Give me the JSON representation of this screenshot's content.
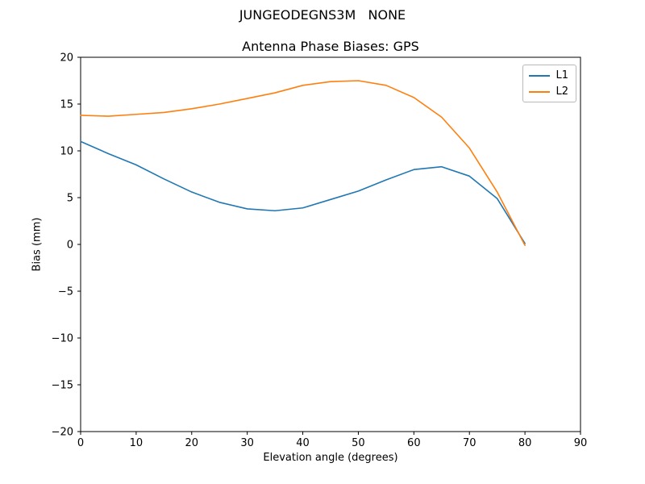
{
  "figure": {
    "suptitle": "JUNGEODEGNS3M   NONE",
    "axes_title": "Antenna Phase Biases: GPS"
  },
  "chart_data": {
    "type": "line",
    "suptitle": "JUNGEODEGNS3M   NONE",
    "title": "Antenna Phase Biases: GPS",
    "xlabel": "Elevation angle (degrees)",
    "ylabel": "Bias (mm)",
    "xlim": [
      0,
      90
    ],
    "ylim": [
      -20,
      20
    ],
    "xticks": [
      0,
      10,
      20,
      30,
      40,
      50,
      60,
      70,
      80,
      90
    ],
    "yticks": [
      -20,
      -15,
      -10,
      -5,
      0,
      5,
      10,
      15,
      20
    ],
    "grid": false,
    "legend_position": "upper right",
    "x": [
      0,
      5,
      10,
      15,
      20,
      25,
      30,
      35,
      40,
      45,
      50,
      55,
      60,
      65,
      70,
      75,
      80
    ],
    "series": [
      {
        "name": "L1",
        "color": "#1f77b4",
        "values": [
          11.0,
          9.7,
          8.5,
          7.0,
          5.6,
          4.5,
          3.8,
          3.6,
          3.9,
          4.8,
          5.7,
          6.9,
          8.0,
          8.3,
          7.3,
          4.9,
          0.1
        ]
      },
      {
        "name": "L2",
        "color": "#ff7f0e",
        "values": [
          13.8,
          13.7,
          13.9,
          14.1,
          14.5,
          15.0,
          15.6,
          16.2,
          17.0,
          17.4,
          17.5,
          17.0,
          15.7,
          13.6,
          10.3,
          5.6,
          -0.1
        ]
      }
    ]
  }
}
